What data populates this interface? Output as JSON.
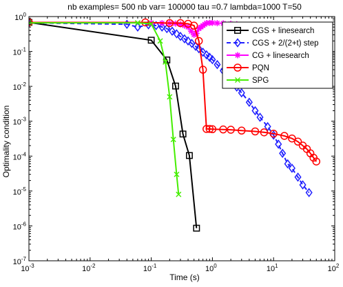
{
  "chart_data": {
    "type": "line",
    "title": "nb examples= 500  nb var= 100000  tau =0.7 lambda=1000 T=50",
    "xlabel": "Time (s)",
    "ylabel": "Optimality condition",
    "xscale": "log",
    "yscale": "log",
    "xlim": [
      0.001,
      100
    ],
    "ylim": [
      1e-07,
      1
    ],
    "x_ticks": [
      {
        "value": 0.001,
        "base": "10",
        "exp": "-3"
      },
      {
        "value": 0.01,
        "base": "10",
        "exp": "-2"
      },
      {
        "value": 0.1,
        "base": "10",
        "exp": "-1"
      },
      {
        "value": 1,
        "base": "10",
        "exp": "0"
      },
      {
        "value": 10,
        "base": "10",
        "exp": "1"
      },
      {
        "value": 100,
        "base": "10",
        "exp": "2"
      }
    ],
    "y_ticks": [
      {
        "value": 1e-07,
        "base": "10",
        "exp": "-7"
      },
      {
        "value": 1e-06,
        "base": "10",
        "exp": "-6"
      },
      {
        "value": 1e-05,
        "base": "10",
        "exp": "-5"
      },
      {
        "value": 0.0001,
        "base": "10",
        "exp": "-4"
      },
      {
        "value": 0.001,
        "base": "10",
        "exp": "-3"
      },
      {
        "value": 0.01,
        "base": "10",
        "exp": "-2"
      },
      {
        "value": 0.1,
        "base": "10",
        "exp": "-1"
      },
      {
        "value": 1,
        "base": "10",
        "exp": "0"
      }
    ],
    "grid": false,
    "legend_position": "top-right",
    "series": [
      {
        "name": "CGS + linesearch",
        "color": "#000000",
        "line_style": "solid",
        "marker": "square",
        "x": [
          0.001,
          0.1,
          0.18,
          0.25,
          0.33,
          0.42,
          0.55
        ],
        "y": [
          0.68,
          0.21,
          0.057,
          0.0102,
          0.00043,
          0.000104,
          8.6e-07
        ]
      },
      {
        "name": "CGS + 2/(2+t) step",
        "color": "#1f1fff",
        "line_style": "dashed",
        "marker": "diamond",
        "x": [
          0.001,
          0.04,
          0.06,
          0.09,
          0.12,
          0.15,
          0.18,
          0.22,
          0.26,
          0.3,
          0.35,
          0.4,
          0.46,
          0.53,
          0.6,
          0.7,
          0.8,
          0.9,
          1.0,
          1.2,
          1.5,
          2,
          2.5,
          3,
          4,
          5,
          6,
          8,
          10,
          12,
          14,
          17,
          20,
          25,
          30,
          38
        ],
        "y": [
          0.66,
          0.6,
          0.5,
          0.58,
          0.55,
          0.5,
          0.45,
          0.38,
          0.32,
          0.27,
          0.23,
          0.2,
          0.17,
          0.14,
          0.12,
          0.095,
          0.08,
          0.068,
          0.058,
          0.042,
          0.028,
          0.015,
          0.0095,
          0.0065,
          0.0035,
          0.002,
          0.0013,
          0.0007,
          0.0004,
          0.00022,
          0.00012,
          6e-05,
          4.5e-05,
          2.5e-05,
          1.5e-05,
          9e-06
        ]
      },
      {
        "name": "CG + linesearch",
        "color": "#ff00ff",
        "line_style": "solid",
        "marker": "star",
        "x": [
          0.001,
          0.1,
          0.15,
          0.2,
          0.25,
          0.3,
          0.35,
          0.4,
          0.45,
          0.5,
          0.55,
          0.6,
          0.65,
          0.7,
          0.75,
          0.8,
          0.9,
          1.0,
          1.2,
          1.5,
          2,
          2.5,
          3,
          4,
          5,
          6,
          8,
          10,
          13,
          16,
          20,
          25,
          30,
          40,
          50,
          60
        ],
        "y": [
          0.67,
          0.66,
          0.65,
          0.64,
          0.63,
          0.6,
          0.55,
          0.5,
          0.38,
          0.3,
          0.33,
          0.45,
          0.5,
          0.55,
          0.6,
          0.65,
          0.66,
          0.66,
          0.65,
          0.64,
          0.62,
          0.6,
          0.58,
          0.56,
          0.55,
          0.54,
          0.54,
          0.53,
          0.52,
          0.51,
          0.5,
          0.5,
          0.49,
          0.49,
          0.48,
          0.48
        ]
      },
      {
        "name": "PQN",
        "color": "#ff0000",
        "line_style": "solid",
        "marker": "circle",
        "x": [
          0.001,
          0.08,
          0.2,
          0.3,
          0.4,
          0.5,
          0.6,
          0.7,
          0.8,
          0.9,
          1.0,
          1.5,
          2,
          3,
          5,
          7,
          10,
          15,
          20,
          25,
          30,
          35,
          40,
          45,
          50
        ],
        "y": [
          0.68,
          0.68,
          0.65,
          0.65,
          0.62,
          0.55,
          0.2,
          0.03,
          0.0006,
          0.0006,
          0.00059,
          0.00058,
          0.00057,
          0.00054,
          0.00051,
          0.00048,
          0.00044,
          0.00038,
          0.00032,
          0.00026,
          0.0002,
          0.00016,
          0.00012,
          9e-05,
          7e-05
        ]
      },
      {
        "name": "SPG",
        "color": "#44ee00",
        "line_style": "solid",
        "marker": "x",
        "x": [
          0.001,
          0.06,
          0.1,
          0.14,
          0.17,
          0.2,
          0.23,
          0.26,
          0.28
        ],
        "y": [
          0.66,
          0.66,
          0.62,
          0.2,
          0.05,
          0.005,
          0.0003,
          3e-05,
          8e-06
        ]
      }
    ]
  }
}
